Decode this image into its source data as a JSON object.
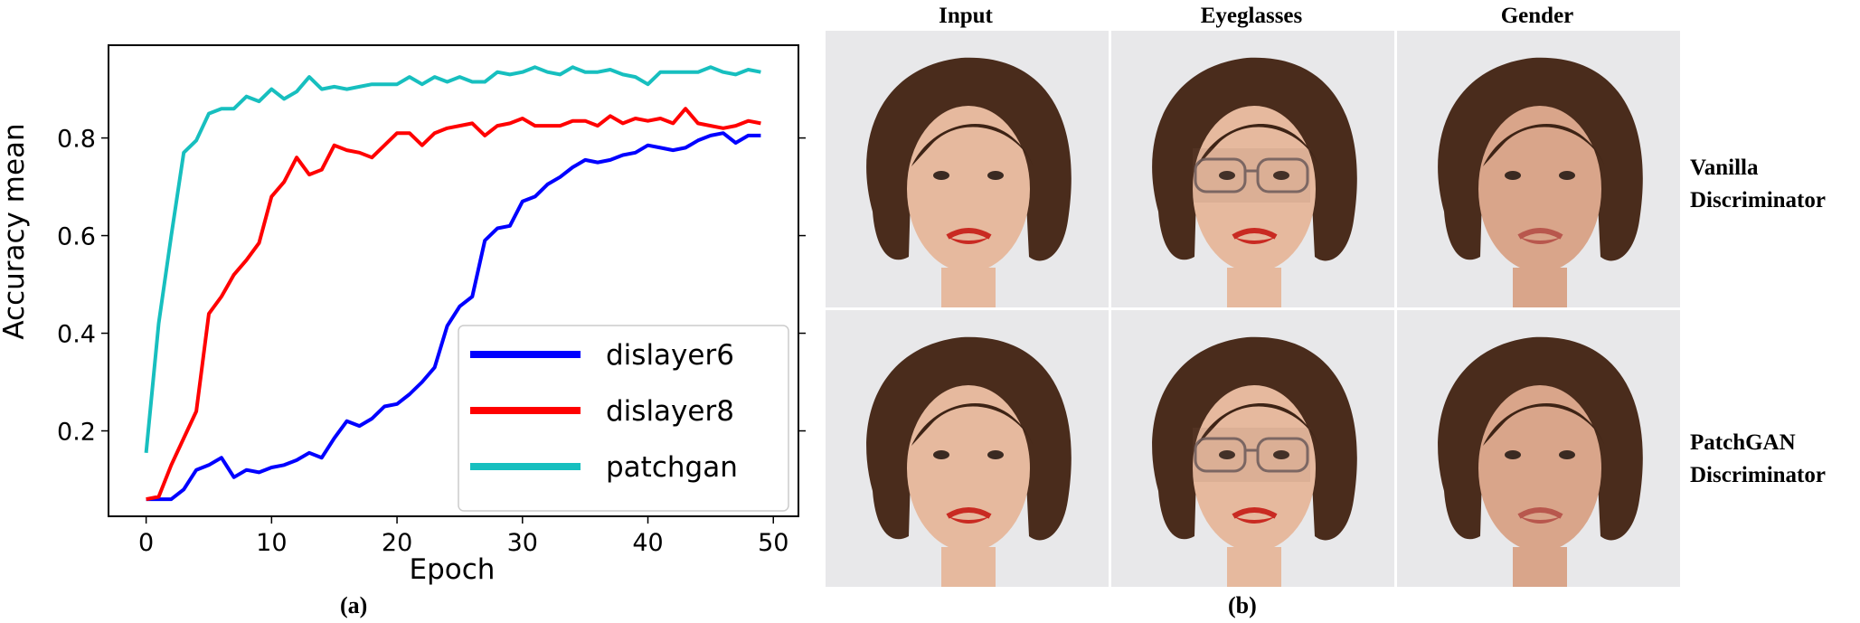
{
  "captions": {
    "left": "(a)",
    "right": "(b)"
  },
  "grid": {
    "columns": [
      "Input",
      "Eyeglasses",
      "Gender"
    ],
    "rows": [
      {
        "line1": "Vanilla",
        "line2": "Discriminator"
      },
      {
        "line1": "PatchGAN",
        "line2": "Discriminator"
      }
    ]
  },
  "chart_data": {
    "type": "line",
    "title": "",
    "xlabel": "Epoch",
    "ylabel": "Accuracy mean",
    "xlim": [
      -3,
      52
    ],
    "ylim": [
      0.025,
      0.99
    ],
    "xticks": [
      0,
      10,
      20,
      30,
      40,
      50
    ],
    "yticks": [
      0.2,
      0.4,
      0.6,
      0.8
    ],
    "grid": false,
    "legend_position": "lower-right",
    "x": [
      0,
      1,
      2,
      3,
      4,
      5,
      6,
      7,
      8,
      9,
      10,
      11,
      12,
      13,
      14,
      15,
      16,
      17,
      18,
      19,
      20,
      21,
      22,
      23,
      24,
      25,
      26,
      27,
      28,
      29,
      30,
      31,
      32,
      33,
      34,
      35,
      36,
      37,
      38,
      39,
      40,
      41,
      42,
      43,
      44,
      45,
      46,
      47,
      48,
      49
    ],
    "series": [
      {
        "name": "dislayer6",
        "color": "#0000ff",
        "values": [
          0.06,
          0.06,
          0.06,
          0.08,
          0.12,
          0.13,
          0.145,
          0.105,
          0.12,
          0.115,
          0.125,
          0.13,
          0.14,
          0.155,
          0.145,
          0.185,
          0.22,
          0.21,
          0.225,
          0.25,
          0.255,
          0.275,
          0.3,
          0.33,
          0.415,
          0.455,
          0.475,
          0.59,
          0.615,
          0.62,
          0.67,
          0.68,
          0.705,
          0.72,
          0.74,
          0.755,
          0.75,
          0.755,
          0.765,
          0.77,
          0.785,
          0.78,
          0.775,
          0.78,
          0.795,
          0.805,
          0.81,
          0.79,
          0.805,
          0.805
        ]
      },
      {
        "name": "dislayer8",
        "color": "#ff0000",
        "values": [
          0.06,
          0.065,
          0.13,
          0.185,
          0.24,
          0.44,
          0.475,
          0.52,
          0.55,
          0.585,
          0.68,
          0.71,
          0.76,
          0.725,
          0.735,
          0.785,
          0.775,
          0.77,
          0.76,
          0.785,
          0.81,
          0.81,
          0.785,
          0.81,
          0.82,
          0.825,
          0.83,
          0.805,
          0.825,
          0.83,
          0.84,
          0.825,
          0.825,
          0.825,
          0.835,
          0.835,
          0.825,
          0.845,
          0.83,
          0.84,
          0.835,
          0.84,
          0.83,
          0.86,
          0.83,
          0.825,
          0.82,
          0.825,
          0.835,
          0.83
        ]
      },
      {
        "name": "patchgan",
        "color": "#17bfbf",
        "values": [
          0.155,
          0.42,
          0.6,
          0.77,
          0.795,
          0.85,
          0.86,
          0.86,
          0.885,
          0.875,
          0.9,
          0.88,
          0.895,
          0.925,
          0.9,
          0.905,
          0.9,
          0.905,
          0.91,
          0.91,
          0.91,
          0.925,
          0.91,
          0.925,
          0.915,
          0.925,
          0.915,
          0.915,
          0.935,
          0.93,
          0.935,
          0.945,
          0.935,
          0.93,
          0.945,
          0.935,
          0.935,
          0.94,
          0.93,
          0.925,
          0.91,
          0.935,
          0.935,
          0.935,
          0.935,
          0.945,
          0.935,
          0.93,
          0.94,
          0.935
        ]
      }
    ]
  }
}
